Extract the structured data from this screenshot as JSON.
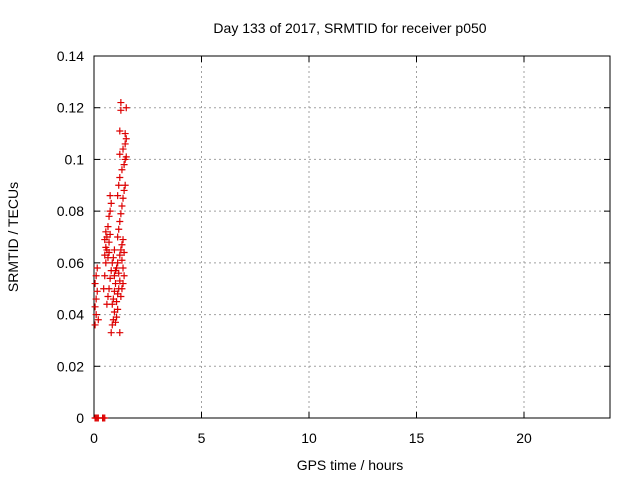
{
  "chart_data": {
    "type": "scatter",
    "title": "Day 133 of 2017, SRMTID for receiver p050",
    "xlabel": "GPS time / hours",
    "ylabel": "SRMTID / TECUs",
    "xlim": [
      0,
      24
    ],
    "ylim": [
      0,
      0.14
    ],
    "xticks": [
      0,
      5,
      10,
      15,
      20
    ],
    "xtick_labels": [
      "0",
      "5",
      "10",
      "15",
      "20"
    ],
    "yticks": [
      0,
      0.02,
      0.04,
      0.06,
      0.08,
      0.1,
      0.12,
      0.14
    ],
    "ytick_labels": [
      "0",
      "0.02",
      "0.04",
      "0.06",
      "0.08",
      "0.1",
      "0.12",
      "0.14"
    ],
    "grid": true,
    "marker": "plus",
    "color": "#dd0000",
    "series": [
      {
        "points": [
          [
            0.05,
            0.0
          ],
          [
            0.1,
            0.0
          ],
          [
            0.15,
            0.0
          ],
          [
            0.2,
            0.0
          ],
          [
            0.4,
            0.0
          ],
          [
            0.45,
            0.0
          ],
          [
            0.5,
            0.0
          ],
          [
            0.05,
            0.036
          ],
          [
            0.1,
            0.04
          ],
          [
            0.05,
            0.043
          ],
          [
            0.1,
            0.046
          ],
          [
            0.15,
            0.049
          ],
          [
            0.05,
            0.052
          ],
          [
            0.1,
            0.055
          ],
          [
            0.15,
            0.058
          ],
          [
            0.2,
            0.038
          ],
          [
            0.45,
            0.05
          ],
          [
            0.5,
            0.055
          ],
          [
            0.55,
            0.06
          ],
          [
            0.5,
            0.063
          ],
          [
            0.55,
            0.066
          ],
          [
            0.5,
            0.069
          ],
          [
            0.6,
            0.07
          ],
          [
            0.55,
            0.072
          ],
          [
            0.65,
            0.074
          ],
          [
            0.6,
            0.065
          ],
          [
            0.65,
            0.062
          ],
          [
            0.7,
            0.064
          ],
          [
            0.7,
            0.068
          ],
          [
            0.75,
            0.071
          ],
          [
            0.7,
            0.078
          ],
          [
            0.75,
            0.08
          ],
          [
            0.8,
            0.083
          ],
          [
            0.75,
            0.086
          ],
          [
            0.6,
            0.044
          ],
          [
            0.65,
            0.047
          ],
          [
            0.7,
            0.05
          ],
          [
            0.75,
            0.054
          ],
          [
            0.8,
            0.057
          ],
          [
            0.85,
            0.06
          ],
          [
            0.9,
            0.062
          ],
          [
            0.95,
            0.065
          ],
          [
            0.8,
            0.033
          ],
          [
            0.85,
            0.036
          ],
          [
            0.9,
            0.038
          ],
          [
            0.95,
            0.041
          ],
          [
            0.85,
            0.044
          ],
          [
            0.9,
            0.046
          ],
          [
            0.95,
            0.049
          ],
          [
            1.0,
            0.052
          ],
          [
            1.0,
            0.037
          ],
          [
            1.05,
            0.039
          ],
          [
            1.1,
            0.042
          ],
          [
            1.05,
            0.045
          ],
          [
            1.1,
            0.048
          ],
          [
            1.15,
            0.05
          ],
          [
            1.2,
            0.053
          ],
          [
            1.15,
            0.056
          ],
          [
            0.95,
            0.055
          ],
          [
            1.0,
            0.057
          ],
          [
            1.05,
            0.058
          ],
          [
            1.1,
            0.06
          ],
          [
            1.2,
            0.063
          ],
          [
            1.25,
            0.065
          ],
          [
            1.3,
            0.067
          ],
          [
            1.35,
            0.069
          ],
          [
            1.2,
            0.033
          ],
          [
            1.25,
            0.047
          ],
          [
            1.3,
            0.05
          ],
          [
            1.35,
            0.052
          ],
          [
            1.4,
            0.055
          ],
          [
            1.35,
            0.058
          ],
          [
            1.3,
            0.061
          ],
          [
            1.4,
            0.064
          ],
          [
            1.1,
            0.07
          ],
          [
            1.15,
            0.073
          ],
          [
            1.2,
            0.076
          ],
          [
            1.25,
            0.079
          ],
          [
            1.3,
            0.082
          ],
          [
            1.35,
            0.085
          ],
          [
            1.4,
            0.088
          ],
          [
            1.45,
            0.09
          ],
          [
            1.1,
            0.086
          ],
          [
            1.15,
            0.09
          ],
          [
            1.2,
            0.093
          ],
          [
            1.3,
            0.096
          ],
          [
            1.4,
            0.098
          ],
          [
            1.45,
            0.1
          ],
          [
            1.5,
            0.101
          ],
          [
            1.2,
            0.102
          ],
          [
            1.35,
            0.104
          ],
          [
            1.45,
            0.106
          ],
          [
            1.5,
            0.108
          ],
          [
            1.45,
            0.11
          ],
          [
            1.2,
            0.111
          ],
          [
            1.25,
            0.119
          ],
          [
            1.5,
            0.12
          ],
          [
            1.25,
            0.122
          ]
        ]
      }
    ]
  }
}
